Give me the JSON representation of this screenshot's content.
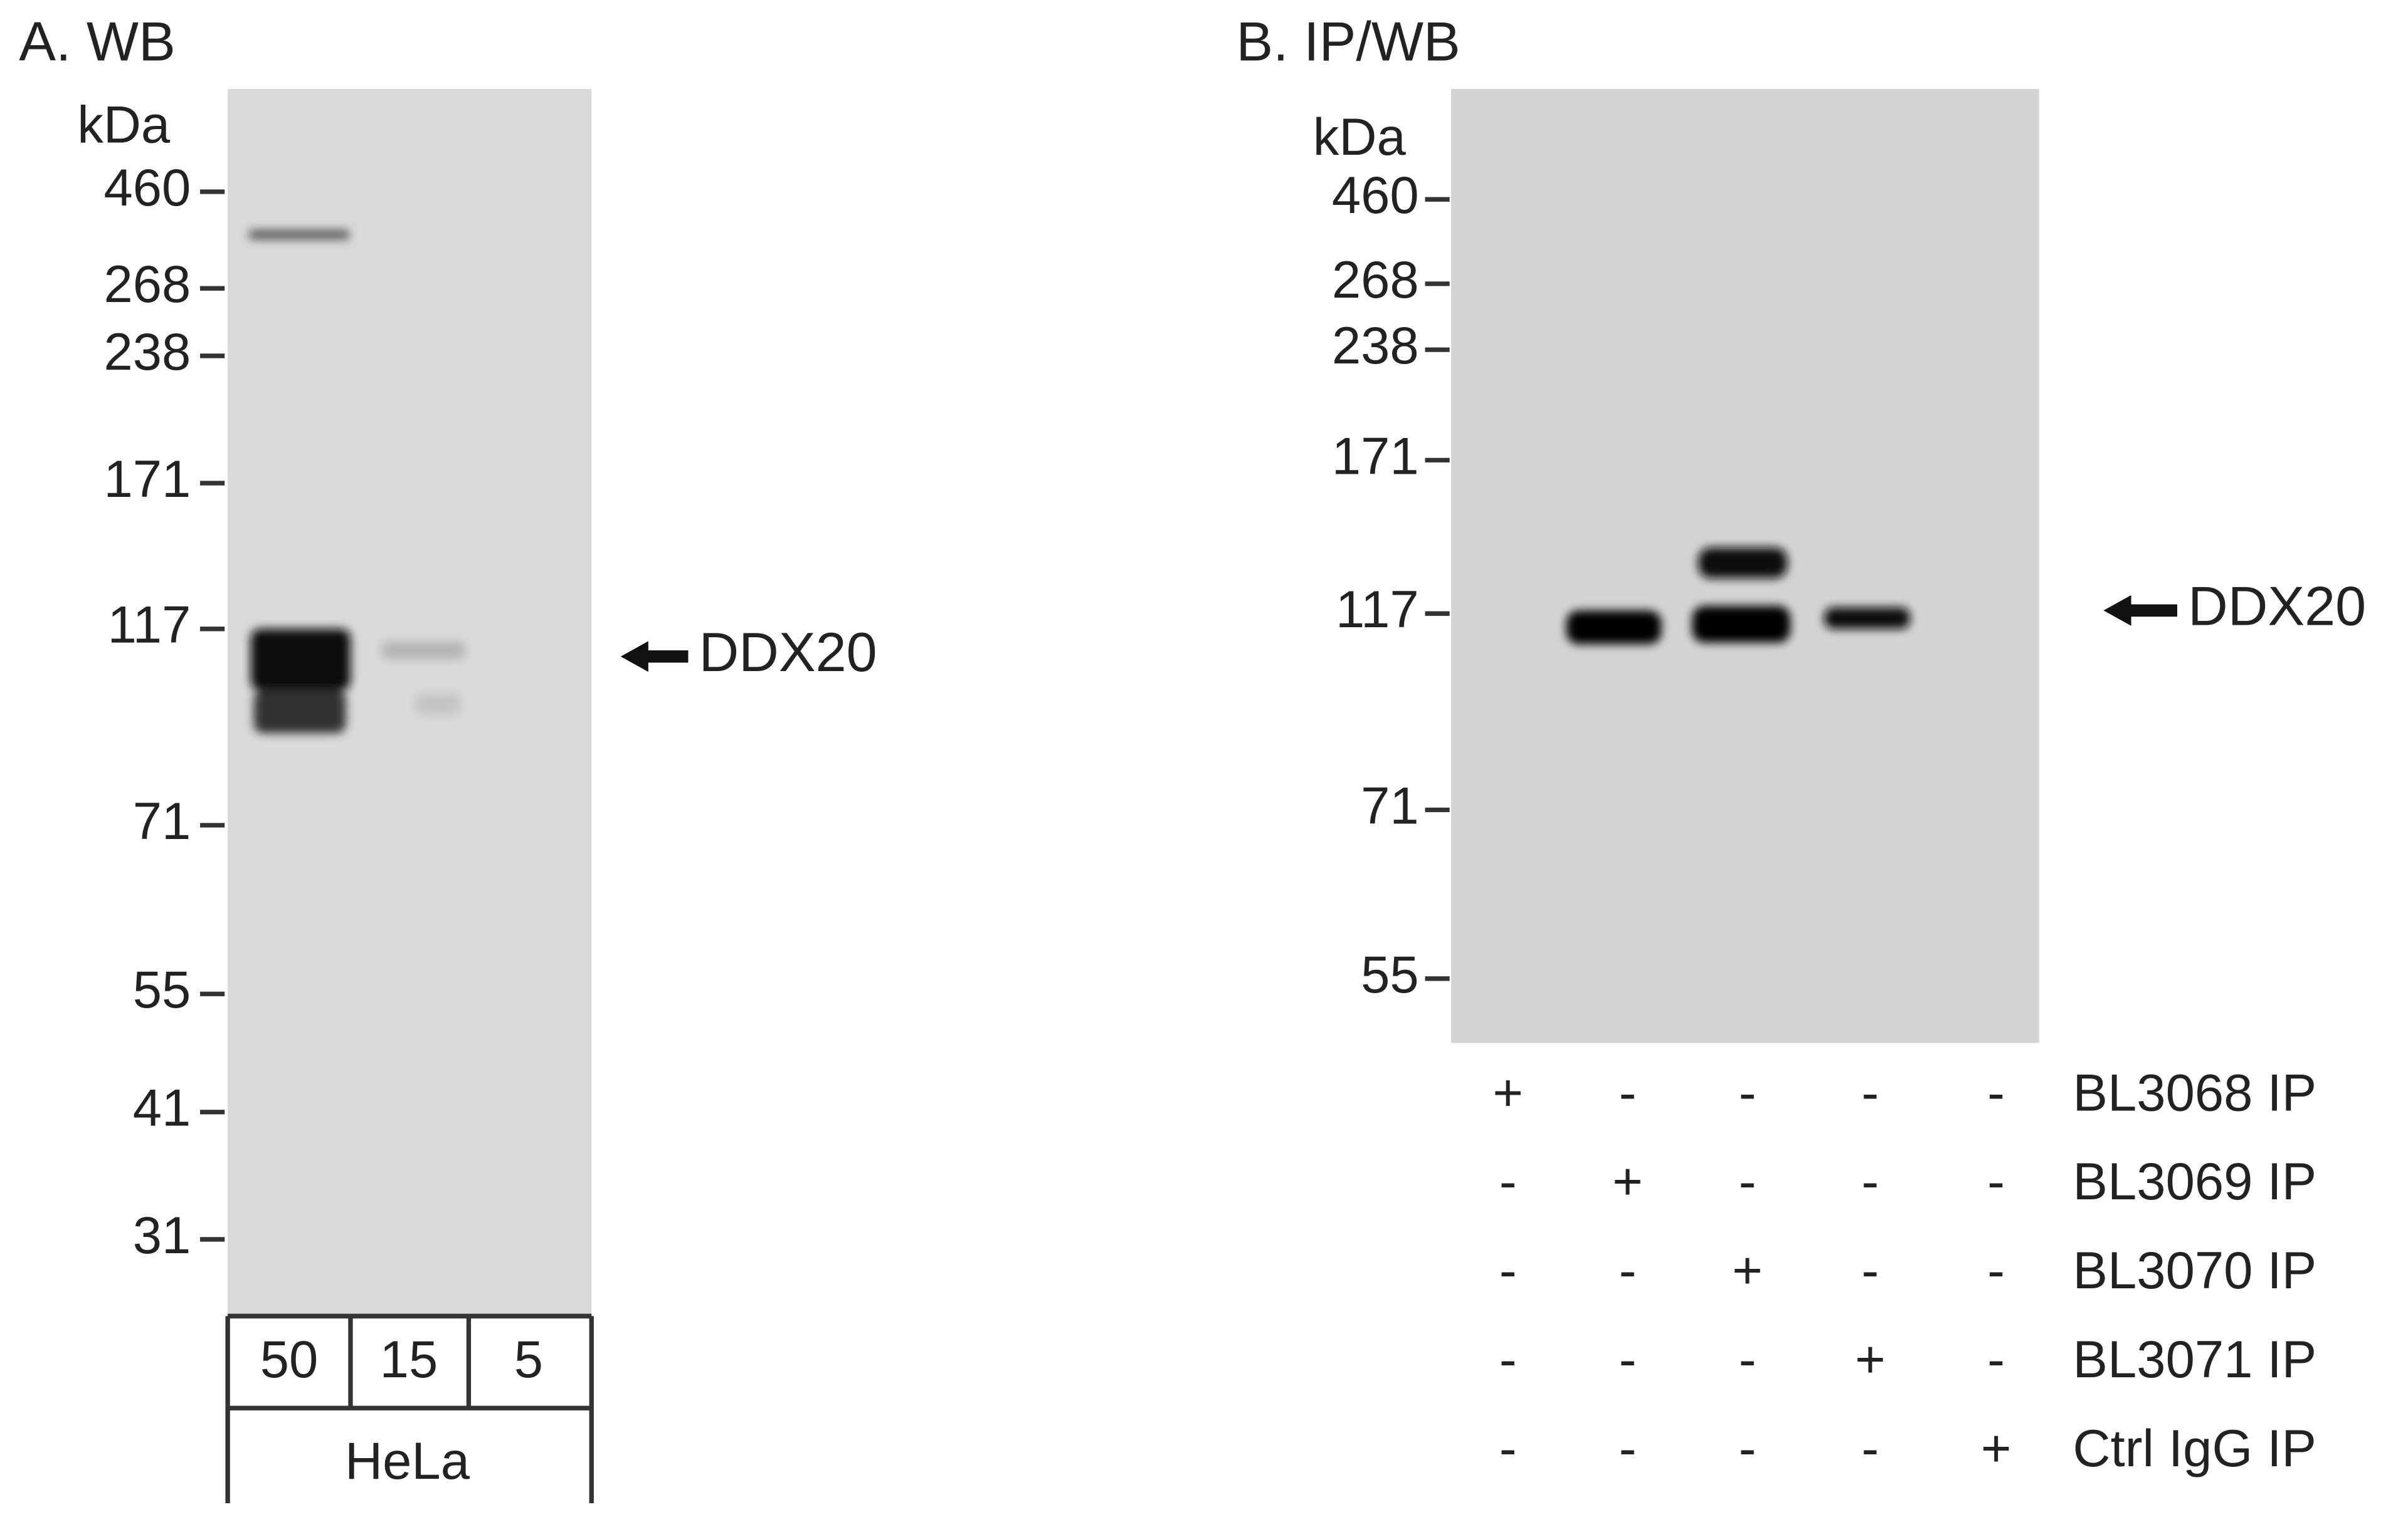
{
  "panel_a": {
    "title": "A. WB",
    "unit": "kDa",
    "markers": [
      "460",
      "268",
      "238",
      "171",
      "117",
      "71",
      "55",
      "41",
      "31"
    ],
    "band_label": "DDX20",
    "lanes": [
      "50",
      "15",
      "5"
    ],
    "cell_line": "HeLa"
  },
  "panel_b": {
    "title": "B. IP/WB",
    "unit": "kDa",
    "markers": [
      "460",
      "268",
      "238",
      "171",
      "117",
      "71",
      "55"
    ],
    "band_label": "DDX20",
    "ip_rows": [
      {
        "name": "BL3068 IP",
        "signs": [
          "+",
          "-",
          "-",
          "-",
          "-"
        ]
      },
      {
        "name": "BL3069 IP",
        "signs": [
          "-",
          "+",
          "-",
          "-",
          "-"
        ]
      },
      {
        "name": "BL3070 IP",
        "signs": [
          "-",
          "-",
          "+",
          "-",
          "-"
        ]
      },
      {
        "name": "BL3071 IP",
        "signs": [
          "-",
          "-",
          "-",
          "+",
          "-"
        ]
      },
      {
        "name": "Ctrl IgG IP",
        "signs": [
          "-",
          "-",
          "-",
          "-",
          "+"
        ]
      }
    ]
  }
}
